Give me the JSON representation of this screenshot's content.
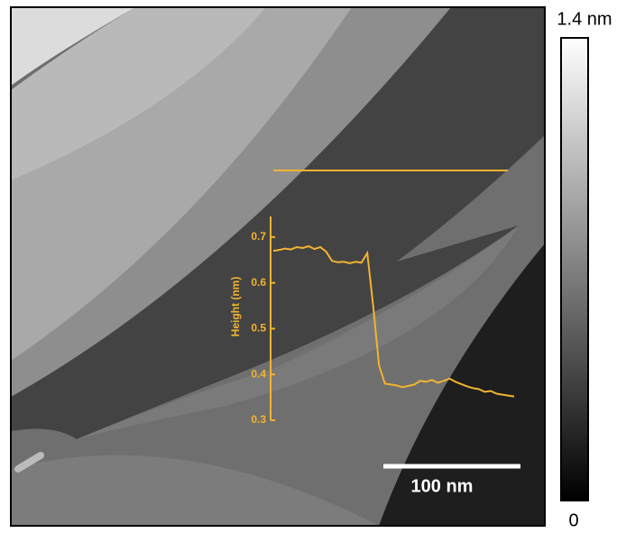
{
  "chart_data": {
    "type": "line",
    "y_label": "Height (nm)",
    "color": "#f2b431",
    "values": [
      0.67,
      0.672,
      0.675,
      0.673,
      0.678,
      0.676,
      0.68,
      0.674,
      0.678,
      0.668,
      0.648,
      0.645,
      0.646,
      0.643,
      0.646,
      0.644,
      0.665,
      0.55,
      0.42,
      0.38,
      0.378,
      0.376,
      0.372,
      0.375,
      0.378,
      0.386,
      0.384,
      0.388,
      0.382,
      0.386,
      0.391,
      0.384,
      0.379,
      0.374,
      0.37,
      0.368,
      0.362,
      0.364,
      0.358,
      0.356,
      0.354,
      0.352
    ],
    "ylim": [
      0.3,
      0.745
    ],
    "yticks": [
      0.3,
      0.4,
      0.5,
      0.6,
      0.7
    ],
    "colorbar": {
      "max_label": "1.4 nm",
      "min_label": "0"
    },
    "scale_bar_label": "100 nm"
  }
}
